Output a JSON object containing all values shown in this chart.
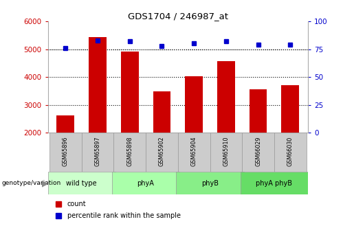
{
  "title": "GDS1704 / 246987_at",
  "samples": [
    "GSM65896",
    "GSM65897",
    "GSM65898",
    "GSM65902",
    "GSM65904",
    "GSM65910",
    "GSM66029",
    "GSM66030"
  ],
  "counts": [
    2620,
    5430,
    4920,
    3490,
    4020,
    4580,
    3570,
    3700
  ],
  "percentile_ranks": [
    76,
    83,
    82,
    78,
    80,
    82,
    79,
    79
  ],
  "groups": [
    {
      "label": "wild type",
      "indices": [
        0,
        1
      ],
      "color": "#aaffaa"
    },
    {
      "label": "phyA",
      "indices": [
        2,
        3
      ],
      "color": "#aaffaa"
    },
    {
      "label": "phyB",
      "indices": [
        4,
        5
      ],
      "color": "#77ee77"
    },
    {
      "label": "phyA phyB",
      "indices": [
        6,
        7
      ],
      "color": "#55dd55"
    }
  ],
  "bar_color": "#cc0000",
  "dot_color": "#0000cc",
  "ylim_left": [
    2000,
    6000
  ],
  "ylim_right": [
    0,
    100
  ],
  "yticks_left": [
    2000,
    3000,
    4000,
    5000,
    6000
  ],
  "yticks_right": [
    0,
    25,
    50,
    75,
    100
  ],
  "grid_values": [
    3000,
    4000,
    5000
  ],
  "bar_bottom": 2000,
  "left_tick_color": "#cc0000",
  "right_tick_color": "#0000cc",
  "sample_box_color": "#cccccc",
  "group_box_colors": [
    "#ccffcc",
    "#aaffaa",
    "#88ee88",
    "#66dd66"
  ],
  "legend_count_color": "#cc0000",
  "legend_dot_color": "#0000cc"
}
